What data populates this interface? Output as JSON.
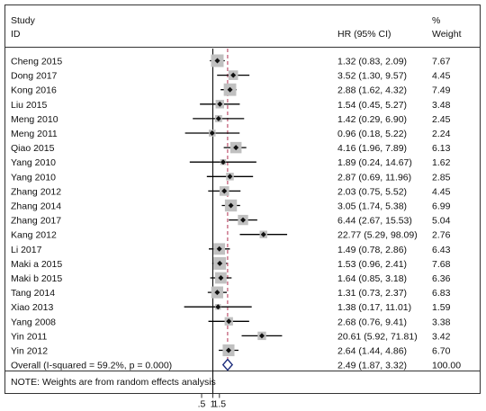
{
  "chart_data": {
    "type": "forest",
    "header": {
      "study_line1": "Study",
      "study_line2": "ID",
      "hr_label": "HR (95% CI)",
      "weight_line1": "%",
      "weight_line2": "Weight"
    },
    "studies": [
      {
        "id": "Cheng 2015",
        "hr": 1.32,
        "lo": 0.83,
        "hi": 2.09,
        "ci_text": "1.32 (0.83, 2.09)",
        "weight": "7.67"
      },
      {
        "id": "Dong 2017",
        "hr": 3.52,
        "lo": 1.3,
        "hi": 9.57,
        "ci_text": "3.52 (1.30, 9.57)",
        "weight": "4.45"
      },
      {
        "id": "Kong 2016",
        "hr": 2.88,
        "lo": 1.62,
        "hi": 4.32,
        "ci_text": "2.88 (1.62, 4.32)",
        "weight": "7.49"
      },
      {
        "id": "Liu 2015",
        "hr": 1.54,
        "lo": 0.45,
        "hi": 5.27,
        "ci_text": "1.54 (0.45, 5.27)",
        "weight": "3.48"
      },
      {
        "id": "Meng 2010",
        "hr": 1.42,
        "lo": 0.29,
        "hi": 6.9,
        "ci_text": "1.42 (0.29, 6.90)",
        "weight": "2.45"
      },
      {
        "id": "Meng 2011",
        "hr": 0.96,
        "lo": 0.18,
        "hi": 5.22,
        "ci_text": "0.96 (0.18, 5.22)",
        "weight": "2.24"
      },
      {
        "id": "Qiao 2015",
        "hr": 4.16,
        "lo": 1.96,
        "hi": 7.89,
        "ci_text": "4.16 (1.96, 7.89)",
        "weight": "6.13"
      },
      {
        "id": "Yang 2010",
        "hr": 1.89,
        "lo": 0.24,
        "hi": 14.67,
        "ci_text": "1.89 (0.24, 14.67)",
        "weight": "1.62"
      },
      {
        "id": "Yang 2010",
        "hr": 2.87,
        "lo": 0.69,
        "hi": 11.96,
        "ci_text": "2.87 (0.69, 11.96)",
        "weight": "2.85"
      },
      {
        "id": "Zhang 2012",
        "hr": 2.03,
        "lo": 0.75,
        "hi": 5.52,
        "ci_text": "2.03 (0.75, 5.52)",
        "weight": "4.45"
      },
      {
        "id": "Zhang 2014",
        "hr": 3.05,
        "lo": 1.74,
        "hi": 5.38,
        "ci_text": "3.05 (1.74, 5.38)",
        "weight": "6.99"
      },
      {
        "id": "Zhang 2017",
        "hr": 6.44,
        "lo": 2.67,
        "hi": 15.53,
        "ci_text": "6.44 (2.67, 15.53)",
        "weight": "5.04"
      },
      {
        "id": "Kang 2012",
        "hr": 22.77,
        "lo": 5.29,
        "hi": 98.09,
        "ci_text": "22.77 (5.29, 98.09)",
        "weight": "2.76"
      },
      {
        "id": "Li 2017",
        "hr": 1.49,
        "lo": 0.78,
        "hi": 2.86,
        "ci_text": "1.49 (0.78, 2.86)",
        "weight": "6.43"
      },
      {
        "id": "Maki a 2015",
        "hr": 1.53,
        "lo": 0.96,
        "hi": 2.41,
        "ci_text": "1.53 (0.96, 2.41)",
        "weight": "7.68"
      },
      {
        "id": "Maki b 2015",
        "hr": 1.64,
        "lo": 0.85,
        "hi": 3.18,
        "ci_text": "1.64 (0.85, 3.18)",
        "weight": "6.36"
      },
      {
        "id": "Tang 2014",
        "hr": 1.31,
        "lo": 0.73,
        "hi": 2.37,
        "ci_text": "1.31 (0.73, 2.37)",
        "weight": "6.83"
      },
      {
        "id": "Xiao 2013",
        "hr": 1.38,
        "lo": 0.17,
        "hi": 11.01,
        "ci_text": "1.38 (0.17, 11.01)",
        "weight": "1.59"
      },
      {
        "id": "Yang 2008",
        "hr": 2.68,
        "lo": 0.76,
        "hi": 9.41,
        "ci_text": "2.68 (0.76, 9.41)",
        "weight": "3.38"
      },
      {
        "id": "Yin 2011",
        "hr": 20.61,
        "lo": 5.92,
        "hi": 71.81,
        "ci_text": "20.61 (5.92, 71.81)",
        "weight": "3.42"
      },
      {
        "id": "Yin 2012",
        "hr": 2.64,
        "lo": 1.44,
        "hi": 4.86,
        "ci_text": "2.64 (1.44, 4.86)",
        "weight": "6.70"
      }
    ],
    "overall": {
      "label": "Overall  (I-squared = 59.2%, p = 0.000)",
      "hr": 2.49,
      "lo": 1.87,
      "hi": 3.32,
      "ci_text": "2.49 (1.87, 3.32)",
      "weight": "100.00"
    },
    "note": "NOTE: Weights are from random effects analysis",
    "x_scale": "log",
    "x_ticks": [
      {
        "value": 0.5,
        "label": ".5"
      },
      {
        "value": 1,
        "label": "1"
      },
      {
        "value": 1.5,
        "label": "1.5"
      }
    ],
    "null_line": 1,
    "colors": {
      "box": "#c0c0c0",
      "line": "#000000",
      "overall_line": "#b03050",
      "diamond": "#1a2a7a"
    }
  }
}
